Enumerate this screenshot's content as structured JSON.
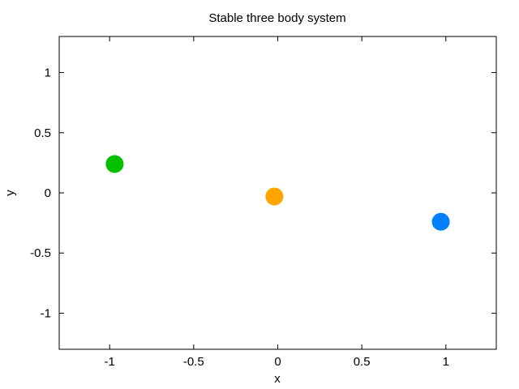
{
  "chart_data": {
    "type": "scatter",
    "title": "Stable three body system",
    "xlabel": "x",
    "ylabel": "y",
    "xlim": [
      -1.3,
      1.3
    ],
    "ylim": [
      -1.3,
      1.3
    ],
    "xticks": [
      -1,
      -0.5,
      0,
      0.5,
      1
    ],
    "yticks": [
      -1,
      -0.5,
      0,
      0.5,
      1
    ],
    "xtick_labels": [
      "-1",
      "-0.5",
      "0",
      "0.5",
      "1"
    ],
    "ytick_labels": [
      "-1",
      "-0.5",
      "0",
      "0.5",
      "1"
    ],
    "grid": false,
    "series": [
      {
        "color": "#00c000",
        "points": [
          {
            "x": -0.97,
            "y": 0.24
          }
        ]
      },
      {
        "color": "#ffa500",
        "points": [
          {
            "x": -0.02,
            "y": -0.03
          }
        ]
      },
      {
        "color": "#0080ff",
        "points": [
          {
            "x": 0.97,
            "y": -0.24
          }
        ]
      }
    ]
  }
}
